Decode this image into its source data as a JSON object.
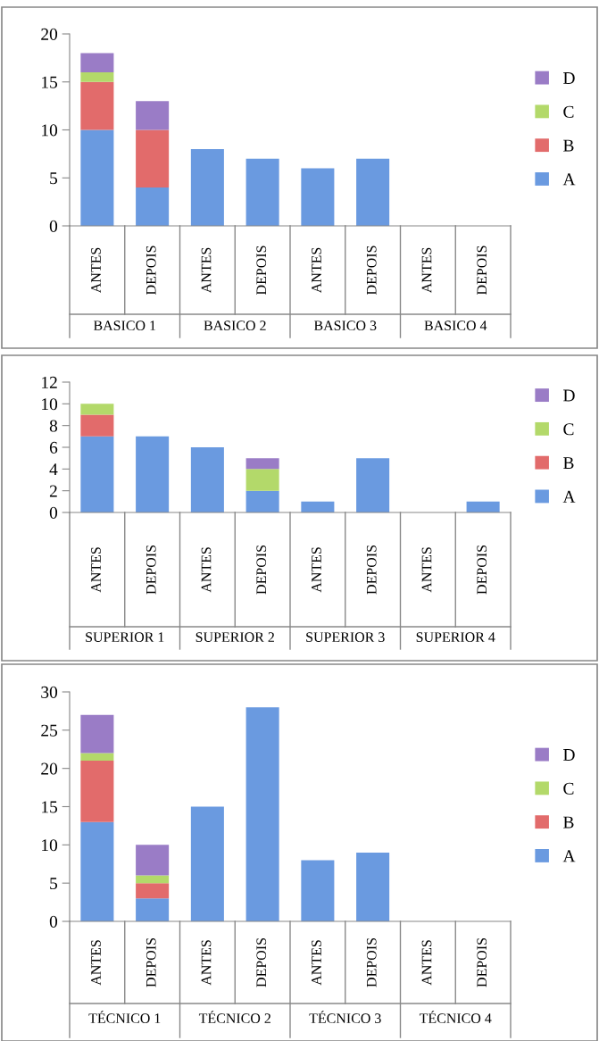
{
  "chart_data": [
    {
      "type": "bar",
      "stacked": true,
      "legend": "right",
      "grid": false,
      "categories": [
        "ANTES",
        "DEPOIS",
        "ANTES",
        "DEPOIS",
        "ANTES",
        "DEPOIS",
        "ANTES",
        "DEPOIS"
      ],
      "annotations": [
        "BASICO 1",
        "BASICO 2",
        "BASICO 3",
        "BASICO 4"
      ],
      "ylim": [
        0,
        20
      ],
      "yticks": [
        0,
        5,
        10,
        15,
        20
      ],
      "series": [
        {
          "name": "A",
          "color": "#6a9ae0",
          "values": [
            10,
            4,
            8,
            7,
            6,
            7,
            0,
            0
          ]
        },
        {
          "name": "B",
          "color": "#e26b6b",
          "values": [
            5,
            6,
            0,
            0,
            0,
            0,
            0,
            0
          ]
        },
        {
          "name": "C",
          "color": "#b3d96a",
          "values": [
            1,
            0,
            0,
            0,
            0,
            0,
            0,
            0
          ]
        },
        {
          "name": "D",
          "color": "#9a7cc6",
          "values": [
            2,
            3,
            0,
            0,
            0,
            0,
            0,
            0
          ]
        }
      ]
    },
    {
      "type": "bar",
      "stacked": true,
      "legend": "right",
      "grid": false,
      "categories": [
        "ANTES",
        "DEPOIS",
        "ANTES",
        "DEPOIS",
        "ANTES",
        "DEPOIS",
        "ANTES",
        "DEPOIS"
      ],
      "annotations": [
        "SUPERIOR 1",
        "SUPERIOR 2",
        "SUPERIOR 3",
        "SUPERIOR 4"
      ],
      "ylim": [
        0,
        12
      ],
      "yticks": [
        0,
        2,
        4,
        6,
        8,
        10,
        12
      ],
      "series": [
        {
          "name": "A",
          "color": "#6a9ae0",
          "values": [
            7,
            7,
            6,
            2,
            1,
            5,
            0,
            1
          ]
        },
        {
          "name": "B",
          "color": "#e26b6b",
          "values": [
            2,
            0,
            0,
            0,
            0,
            0,
            0,
            0
          ]
        },
        {
          "name": "C",
          "color": "#b3d96a",
          "values": [
            1,
            0,
            0,
            2,
            0,
            0,
            0,
            0
          ]
        },
        {
          "name": "D",
          "color": "#9a7cc6",
          "values": [
            0,
            0,
            0,
            1,
            0,
            0,
            0,
            0
          ]
        }
      ]
    },
    {
      "type": "bar",
      "stacked": true,
      "legend": "right",
      "grid": false,
      "categories": [
        "ANTES",
        "DEPOIS",
        "ANTES",
        "DEPOIS",
        "ANTES",
        "DEPOIS",
        "ANTES",
        "DEPOIS"
      ],
      "annotations": [
        "TÉCNICO 1",
        "TÉCNICO 2",
        "TÉCNICO 3",
        "TÉCNICO 4"
      ],
      "ylim": [
        0,
        30
      ],
      "yticks": [
        0,
        5,
        10,
        15,
        20,
        25,
        30
      ],
      "series": [
        {
          "name": "A",
          "color": "#6a9ae0",
          "values": [
            13,
            3,
            15,
            28,
            8,
            9,
            0,
            0
          ]
        },
        {
          "name": "B",
          "color": "#e26b6b",
          "values": [
            8,
            2,
            0,
            0,
            0,
            0,
            0,
            0
          ]
        },
        {
          "name": "C",
          "color": "#b3d96a",
          "values": [
            1,
            1,
            0,
            0,
            0,
            0,
            0,
            0
          ]
        },
        {
          "name": "D",
          "color": "#9a7cc6",
          "values": [
            5,
            4,
            0,
            0,
            0,
            0,
            0,
            0
          ]
        }
      ]
    }
  ]
}
